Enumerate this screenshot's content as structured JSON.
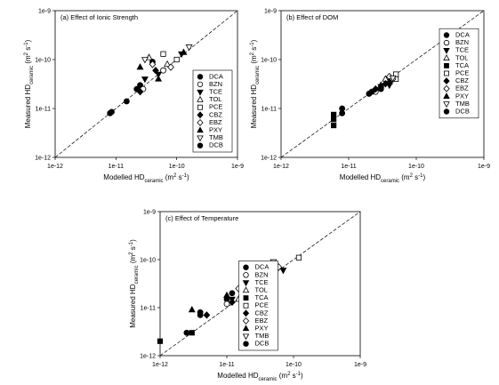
{
  "chart_data": [
    {
      "type": "scatter",
      "title": "(a) Effect of Ionic Strength",
      "xlabel": [
        {
          "text": "Modelled HD"
        },
        {
          "text": "ceramic",
          "shift": "sub"
        },
        {
          "text": " (m"
        },
        {
          "text": "2",
          "shift": "super"
        },
        {
          "text": " s"
        },
        {
          "text": "-1",
          "shift": "super"
        },
        {
          "text": ")"
        }
      ],
      "ylabel": [
        {
          "text": "Measured HD"
        },
        {
          "text": "ceramic",
          "shift": "sub"
        },
        {
          "text": " (m"
        },
        {
          "text": "2",
          "shift": "super"
        },
        {
          "text": " s"
        },
        {
          "text": "-1",
          "shift": "super"
        },
        {
          "text": ")"
        }
      ],
      "log_scale": true,
      "color": "#000000",
      "legend": "lower right",
      "xlim": [
        1e-12,
        1e-09
      ],
      "ylim": [
        1e-12,
        1e-09
      ],
      "xticks": [
        1e-12,
        1e-11,
        1e-10,
        1e-09
      ],
      "yticks": [
        1e-12,
        1e-11,
        1e-10,
        1e-09
      ],
      "series": [
        {
          "name": "DCA",
          "marker": "circle",
          "filled": true,
          "x": [
            8e-12,
            2.5e-11,
            4e-11
          ],
          "y": [
            8e-12,
            3e-11,
            9e-11
          ]
        },
        {
          "name": "BZN",
          "marker": "circle",
          "filled": false,
          "x": [
            2.8e-11,
            6e-11
          ],
          "y": [
            2.5e-11,
            6e-11
          ]
        },
        {
          "name": "TCE",
          "marker": "triangle-down",
          "filled": true,
          "x": [
            3e-11,
            5e-11,
            1.2e-10
          ],
          "y": [
            4e-11,
            5e-11,
            1.3e-10
          ]
        },
        {
          "name": "TOL",
          "marker": "triangle-up",
          "filled": false,
          "x": [
            3.5e-11,
            7e-11
          ],
          "y": [
            1.1e-10,
            8e-11
          ]
        },
        {
          "name": "PCE",
          "marker": "square",
          "filled": false,
          "x": [
            6e-11,
            1e-10
          ],
          "y": [
            1.3e-10,
            1e-10
          ]
        },
        {
          "name": "CBZ",
          "marker": "diamond",
          "filled": true,
          "x": [
            2.5e-11,
            4.5e-11
          ],
          "y": [
            2.2e-11,
            6e-11
          ]
        },
        {
          "name": "EBZ",
          "marker": "diamond",
          "filled": false,
          "x": [
            4e-11,
            8e-11
          ],
          "y": [
            8e-11,
            7e-11
          ]
        },
        {
          "name": "PXY",
          "marker": "triangle-up",
          "filled": true,
          "x": [
            2.5e-11,
            5e-11,
            1.3e-10
          ],
          "y": [
            7e-11,
            4e-11,
            1.4e-10
          ]
        },
        {
          "name": "TMB",
          "marker": "triangle-down",
          "filled": false,
          "x": [
            3e-11,
            1.6e-10
          ],
          "y": [
            1e-10,
            1.8e-10
          ]
        },
        {
          "name": "DCB",
          "marker": "circle",
          "filled": true,
          "x": [
            8.5e-12,
            1.5e-11,
            2.2e-11
          ],
          "y": [
            8.5e-12,
            1.4e-11,
            2.5e-11
          ]
        }
      ]
    },
    {
      "type": "scatter",
      "title": "(b) Effect of DOM",
      "xlabel": [
        {
          "text": "Modelled HD"
        },
        {
          "text": "ceramic",
          "shift": "sub"
        },
        {
          "text": " (m"
        },
        {
          "text": "2",
          "shift": "super"
        },
        {
          "text": " s"
        },
        {
          "text": "-1",
          "shift": "super"
        },
        {
          "text": ")"
        }
      ],
      "ylabel": [
        {
          "text": "Measured HD"
        },
        {
          "text": "ceramic",
          "shift": "sub"
        },
        {
          "text": " (m"
        },
        {
          "text": "2",
          "shift": "super"
        },
        {
          "text": " s"
        },
        {
          "text": "-1",
          "shift": "super"
        },
        {
          "text": ")"
        }
      ],
      "log_scale": true,
      "color": "#000000",
      "legend": "center right",
      "xlim": [
        1e-12,
        1e-09
      ],
      "ylim": [
        1e-12,
        1e-09
      ],
      "xticks": [
        1e-12,
        1e-11,
        1e-10,
        1e-09
      ],
      "yticks": [
        1e-12,
        1e-11,
        1e-10,
        1e-09
      ],
      "series": [
        {
          "name": "DCA",
          "marker": "circle",
          "filled": true,
          "x": [
            2e-11,
            3e-11
          ],
          "y": [
            2e-11,
            2.5e-11
          ]
        },
        {
          "name": "BZN",
          "marker": "circle",
          "filled": false,
          "x": [
            2.5e-11,
            4e-11
          ],
          "y": [
            2.2e-11,
            3.5e-11
          ]
        },
        {
          "name": "TCE",
          "marker": "triangle-down",
          "filled": true,
          "x": [
            3e-11,
            4e-11
          ],
          "y": [
            2.8e-11,
            3e-11
          ]
        },
        {
          "name": "TOL",
          "marker": "triangle-up",
          "filled": false,
          "x": [
            3.5e-11
          ],
          "y": [
            4e-11
          ]
        },
        {
          "name": "TCA",
          "marker": "square",
          "filled": true,
          "x": [
            6e-12,
            6e-12,
            6e-12
          ],
          "y": [
            4.5e-12,
            6e-12,
            7.5e-12
          ]
        },
        {
          "name": "PCE",
          "marker": "square",
          "filled": false,
          "x": [
            5e-11,
            5e-11
          ],
          "y": [
            4e-11,
            5e-11
          ]
        },
        {
          "name": "CBZ",
          "marker": "diamond",
          "filled": true,
          "x": [
            2.5e-11,
            3.5e-11
          ],
          "y": [
            2.5e-11,
            3.2e-11
          ]
        },
        {
          "name": "EBZ",
          "marker": "diamond",
          "filled": false,
          "x": [
            4e-11,
            4.5e-11
          ],
          "y": [
            4.5e-11,
            4e-11
          ]
        },
        {
          "name": "PXY",
          "marker": "triangle-up",
          "filled": true,
          "x": [
            3e-11,
            4e-11
          ],
          "y": [
            3e-11,
            3.5e-11
          ]
        },
        {
          "name": "TMB",
          "marker": "triangle-down",
          "filled": false,
          "x": [
            4.5e-11
          ],
          "y": [
            4.2e-11
          ]
        },
        {
          "name": "DCB",
          "marker": "circle",
          "filled": true,
          "x": [
            8e-12,
            8e-12,
            2.2e-11
          ],
          "y": [
            8e-12,
            1e-11,
            2.2e-11
          ]
        }
      ]
    },
    {
      "type": "scatter",
      "title": "(c) Effect of Temperature",
      "xlabel": [
        {
          "text": "Modelled HD"
        },
        {
          "text": "ceramic",
          "shift": "sub"
        },
        {
          "text": " (m"
        },
        {
          "text": "2",
          "shift": "super"
        },
        {
          "text": " s"
        },
        {
          "text": "-1",
          "shift": "super"
        },
        {
          "text": ")"
        }
      ],
      "ylabel": [
        {
          "text": "Measured HD"
        },
        {
          "text": "ceramic",
          "shift": "sub"
        },
        {
          "text": " (m"
        },
        {
          "text": "2",
          "shift": "super"
        },
        {
          "text": " s"
        },
        {
          "text": "-1",
          "shift": "super"
        },
        {
          "text": ")"
        }
      ],
      "log_scale": true,
      "color": "#000000",
      "legend": "lower center",
      "xlim": [
        1e-12,
        1e-09
      ],
      "ylim": [
        1e-12,
        1e-09
      ],
      "xticks": [
        1e-12,
        1e-11,
        1e-10,
        1e-09
      ],
      "yticks": [
        1e-12,
        1e-11,
        1e-10,
        1e-09
      ],
      "series": [
        {
          "name": "DCA",
          "marker": "circle",
          "filled": true,
          "x": [
            4e-12,
            1e-11,
            2e-11,
            3e-11
          ],
          "y": [
            8e-12,
            1.5e-11,
            2.5e-11,
            5e-11
          ]
        },
        {
          "name": "BZN",
          "marker": "circle",
          "filled": false,
          "x": [
            1e-11,
            2.5e-11,
            3.5e-11
          ],
          "y": [
            1.2e-11,
            2e-11,
            5e-11
          ]
        },
        {
          "name": "TCE",
          "marker": "triangle-down",
          "filled": true,
          "x": [
            1.2e-11,
            3e-11,
            7e-11
          ],
          "y": [
            1.5e-11,
            4e-11,
            6e-11
          ]
        },
        {
          "name": "TOL",
          "marker": "triangle-up",
          "filled": false,
          "x": [
            1.5e-11,
            5e-11
          ],
          "y": [
            1.5e-11,
            8e-11
          ]
        },
        {
          "name": "TCA",
          "marker": "square",
          "filled": true,
          "x": [
            1e-12,
            3e-12
          ],
          "y": [
            2e-12,
            3e-12
          ]
        },
        {
          "name": "PCE",
          "marker": "square",
          "filled": false,
          "x": [
            2e-11,
            1.2e-10
          ],
          "y": [
            1.2e-11,
            1.1e-10
          ]
        },
        {
          "name": "CBZ",
          "marker": "diamond",
          "filled": true,
          "x": [
            5e-12,
            1.2e-11,
            4e-11
          ],
          "y": [
            7e-12,
            1.3e-11,
            5.5e-11
          ]
        },
        {
          "name": "EBZ",
          "marker": "diamond",
          "filled": false,
          "x": [
            1.5e-11,
            4.5e-11,
            6e-11
          ],
          "y": [
            2.5e-11,
            4e-11,
            7e-11
          ]
        },
        {
          "name": "PXY",
          "marker": "triangle-up",
          "filled": true,
          "x": [
            3e-12,
            1e-11,
            5e-11
          ],
          "y": [
            9e-12,
            1.8e-11,
            6e-11
          ]
        },
        {
          "name": "TMB",
          "marker": "triangle-down",
          "filled": false,
          "x": [
            2.5e-11,
            5e-11
          ],
          "y": [
            1.8e-11,
            9e-11
          ]
        },
        {
          "name": "DCB",
          "marker": "circle",
          "filled": true,
          "x": [
            2.5e-12,
            4e-12,
            1.2e-11
          ],
          "y": [
            3e-12,
            7e-12,
            2e-11
          ]
        }
      ]
    }
  ]
}
